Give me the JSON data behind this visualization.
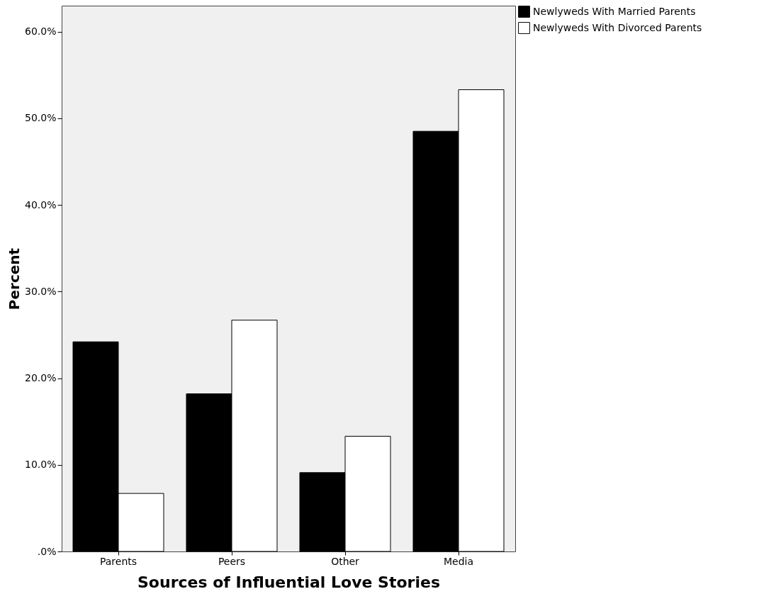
{
  "chart_data": {
    "type": "bar",
    "xlabel": "Sources of Influential Love Stories",
    "ylabel": "Percent",
    "categories": [
      "Parents",
      "Peers",
      "Other",
      "Media"
    ],
    "series": [
      {
        "name": "Newlyweds With Married Parents",
        "color": "#000000",
        "values": [
          24.2,
          18.2,
          9.1,
          48.5
        ]
      },
      {
        "name": "Newlyweds With Divorced Parents",
        "color": "#ffffff",
        "values": [
          6.7,
          26.7,
          13.3,
          53.3
        ]
      }
    ],
    "ylim": [
      0,
      63
    ],
    "yticks": [
      {
        "value": 0,
        "label": ".0%"
      },
      {
        "value": 10,
        "label": "10.0%"
      },
      {
        "value": 20,
        "label": "20.0%"
      },
      {
        "value": 30,
        "label": "30.0%"
      },
      {
        "value": 40,
        "label": "40.0%"
      },
      {
        "value": 50,
        "label": "50.0%"
      },
      {
        "value": 60,
        "label": "60.0%"
      }
    ],
    "legend": "top right"
  }
}
